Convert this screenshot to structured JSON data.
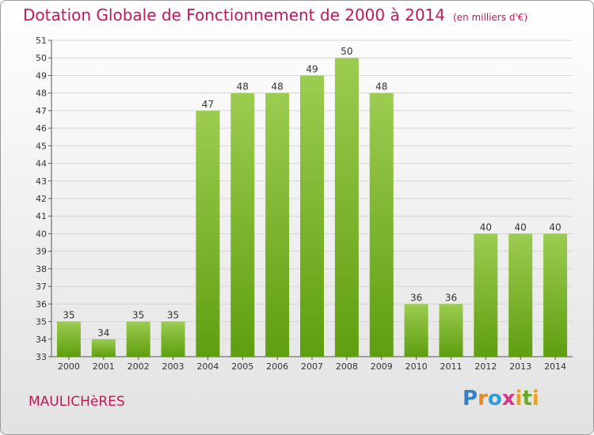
{
  "header": {
    "title": "Dotation Globale de Fonctionnement de 2000 à 2014",
    "subtitle": "(en milliers d'€)"
  },
  "footer": {
    "commune": "MAULICHèRES",
    "logo_letters": [
      "P",
      "r",
      "o",
      "x",
      "i",
      "t",
      "i"
    ]
  },
  "colors": {
    "bar_top": "#9ccc50",
    "bar_bottom": "#5f9e10",
    "text_accent": "#c2185b"
  },
  "chart_data": {
    "type": "bar",
    "categories": [
      "2000",
      "2001",
      "2002",
      "2003",
      "2004",
      "2005",
      "2006",
      "2007",
      "2008",
      "2009",
      "2010",
      "2011",
      "2012",
      "2013",
      "2014"
    ],
    "values": [
      35,
      34,
      35,
      35,
      47,
      48,
      48,
      49,
      50,
      48,
      36,
      36,
      40,
      40,
      40
    ],
    "title": "Dotation Globale de Fonctionnement de 2000 à 2014",
    "subtitle": "(en milliers d'€)",
    "xlabel": "",
    "ylabel": "",
    "ylim": [
      33,
      51
    ],
    "yticks": [
      33,
      34,
      35,
      36,
      37,
      38,
      39,
      40,
      41,
      42,
      43,
      44,
      45,
      46,
      47,
      48,
      49,
      50,
      51
    ],
    "grid": true
  }
}
